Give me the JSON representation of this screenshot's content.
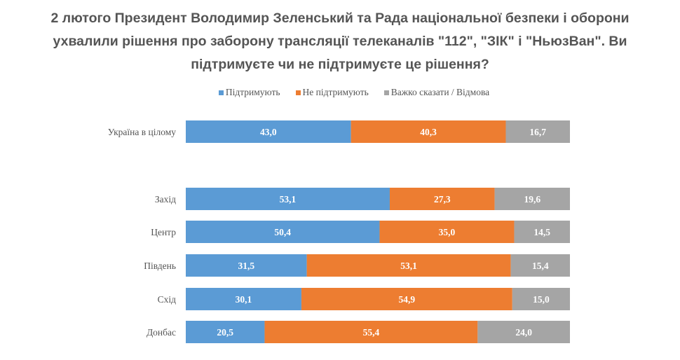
{
  "chart_data": {
    "type": "bar",
    "orientation": "horizontal",
    "stacked": "100%",
    "title_lines": [
      "2 лютого Президент Володимир Зеленський та Рада національної безпеки і оборони",
      "ухвалили рішення про заборону трансляції телеканалів \"112\", \"ЗІК\" і \"НьюзВан\". Ви",
      "підтримуєте чи не підтримуєте це рішення?"
    ],
    "categories": [
      "Україна в цілому",
      "Захід",
      "Центр",
      "Південь",
      "Схід",
      "Донбас"
    ],
    "series": [
      {
        "name": "Підтримують",
        "color": "#5b9bd5",
        "values": [
          43.0,
          53.1,
          50.4,
          31.5,
          30.1,
          20.5
        ],
        "labels": [
          "43,0",
          "53,1",
          "50,4",
          "31,5",
          "30,1",
          "20,5"
        ]
      },
      {
        "name": "Не підтримують",
        "color": "#ed7d31",
        "values": [
          40.3,
          27.3,
          35.0,
          53.1,
          54.9,
          55.4
        ],
        "labels": [
          "40,3",
          "27,3",
          "35,0",
          "53,1",
          "54,9",
          "55,4"
        ]
      },
      {
        "name": "Важко сказати  / Відмова",
        "color": "#a5a5a5",
        "values": [
          16.7,
          19.6,
          14.5,
          15.4,
          15.0,
          24.0
        ],
        "labels": [
          "16,7",
          "19,6",
          "14,5",
          "15,4",
          "15,0",
          "24,0"
        ]
      }
    ],
    "legend_position": "top",
    "grid": false,
    "xlim": [
      0,
      100
    ]
  }
}
